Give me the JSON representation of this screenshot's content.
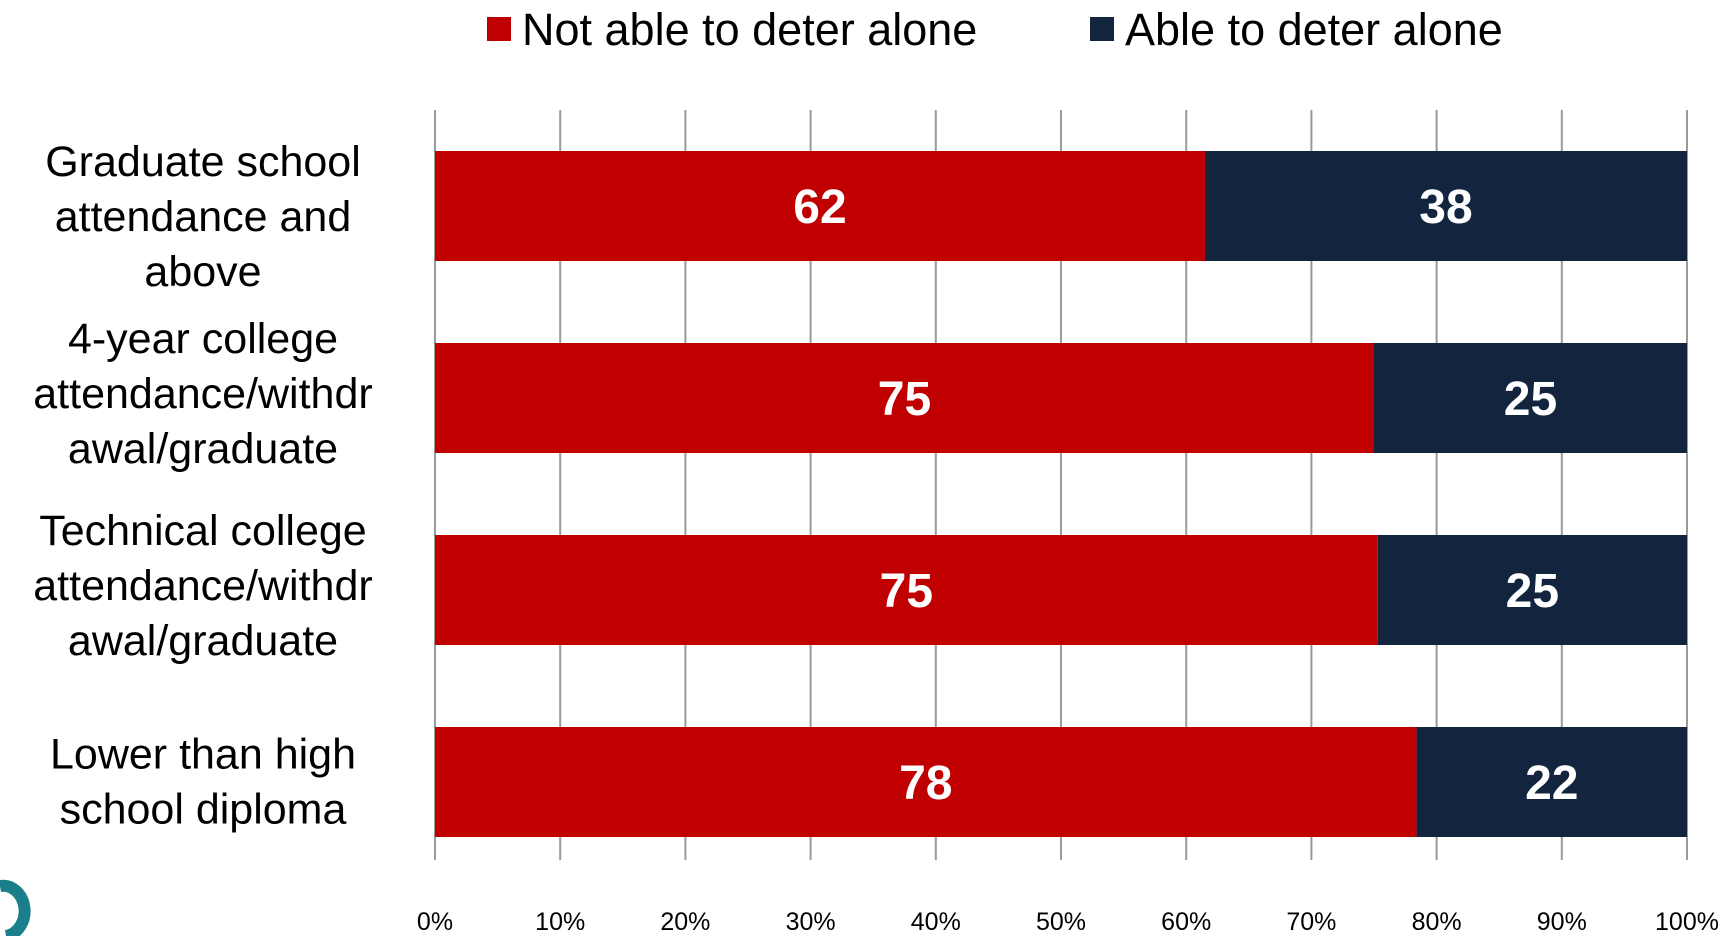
{
  "chart_data": {
    "type": "bar",
    "orientation": "horizontal",
    "stacked": true,
    "categories": [
      [
        "Graduate school",
        "attendance and",
        "above"
      ],
      [
        "4-year college",
        "attendance/withdr",
        "awal/graduate"
      ],
      [
        "Technical college",
        "attendance/withdr",
        "awal/graduate"
      ],
      [
        "Lower than high",
        "school diploma"
      ]
    ],
    "series": [
      {
        "name": "Not able to deter alone",
        "color": "#c00000",
        "values": [
          62,
          75,
          75,
          78
        ],
        "fractions": [
          0.615,
          0.75,
          0.753,
          0.784
        ]
      },
      {
        "name": "Able to deter alone",
        "color": "#13243f",
        "values": [
          38,
          25,
          25,
          22
        ]
      }
    ],
    "xlim": [
      0,
      100
    ],
    "xticks": [
      "0%",
      "10%",
      "20%",
      "30%",
      "40%",
      "50%",
      "60%",
      "70%",
      "80%",
      "90%",
      "100%"
    ],
    "grid": true,
    "legend_position": "top",
    "title": "",
    "xlabel": "",
    "ylabel": ""
  }
}
